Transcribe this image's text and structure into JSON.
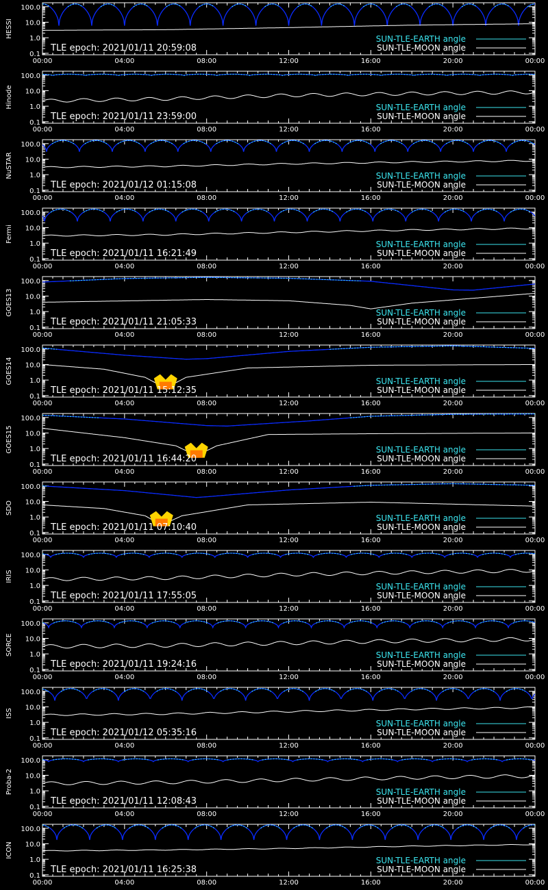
{
  "chart_data": {
    "type": "line",
    "x_tick_labels": [
      "00:00",
      "04:00",
      "08:00",
      "12:00",
      "16:00",
      "20:00",
      "00:00"
    ],
    "y_tick_labels": [
      "100.0",
      "10.0",
      "1.0",
      "0.1"
    ],
    "y_scale": "log",
    "xlim_hours": [
      0,
      24
    ],
    "ylim": [
      0.08,
      180
    ],
    "legend": {
      "placement": "bottom-right",
      "earth_label": "SUN-TLE-EARTH angle",
      "moon_label": "SUN-TLE-MOON angle"
    },
    "colors": {
      "earth_line": "#0a2bff",
      "earth_highlight": "#3ce6f0",
      "moon_line": "#ffffff",
      "marker_outer": "#ffd400",
      "marker_inner": "#ff7a00",
      "axes": "#ffffff",
      "background": "#000000"
    },
    "panels": [
      {
        "name": "HESSI",
        "epoch": "TLE epoch: 2021/01/11 20:59:08",
        "earth": {
          "kind": "arches",
          "period_hours": 1.6,
          "phase_hours": 0.8,
          "peak": 150,
          "dip": 6
        },
        "moon": [
          [
            0,
            3
          ],
          [
            6,
            3.3
          ],
          [
            12,
            4.5
          ],
          [
            18,
            6.5
          ],
          [
            24,
            8
          ]
        ]
      },
      {
        "name": "Hinode",
        "epoch": "TLE epoch: 2021/01/11 23:59:00",
        "earth": {
          "kind": "arches",
          "period_hours": 1.6,
          "phase_hours": 0.5,
          "peak": 115,
          "dip": 95
        },
        "moon": [
          [
            0,
            2.2
          ],
          [
            6,
            3
          ],
          [
            12,
            5
          ],
          [
            18,
            6.5
          ],
          [
            24,
            8
          ]
        ],
        "moon_wiggle": {
          "period_hours": 1.6,
          "factor": 1.6
        }
      },
      {
        "name": "NuSTAR",
        "epoch": "TLE epoch: 2021/01/12 01:15:08",
        "earth": {
          "kind": "arches",
          "period_hours": 1.6,
          "phase_hours": 0.2,
          "peak": 160,
          "dip": 30
        },
        "moon": [
          [
            0,
            3
          ],
          [
            6,
            3.5
          ],
          [
            12,
            5
          ],
          [
            18,
            6.5
          ],
          [
            24,
            8
          ]
        ],
        "moon_wiggle": {
          "period_hours": 1.6,
          "factor": 1.2
        }
      },
      {
        "name": "Fermi",
        "epoch": "TLE epoch: 2021/01/11 16:21:49",
        "earth": {
          "kind": "arches",
          "period_hours": 1.6,
          "phase_hours": 0.1,
          "peak": 155,
          "dip": 25
        },
        "moon": [
          [
            0,
            3
          ],
          [
            6,
            3.5
          ],
          [
            12,
            5
          ],
          [
            18,
            7
          ],
          [
            24,
            9
          ]
        ],
        "moon_wiggle": {
          "period_hours": 1.6,
          "factor": 1.2
        }
      },
      {
        "name": "GOES13",
        "epoch": "TLE epoch: 2021/01/11 21:05:33",
        "earth": {
          "kind": "smooth",
          "points": [
            [
              0,
              80
            ],
            [
              4,
              135
            ],
            [
              8,
              160
            ],
            [
              12,
              140
            ],
            [
              16,
              90
            ],
            [
              20,
              25
            ],
            [
              21,
              24
            ],
            [
              24,
              60
            ]
          ]
        },
        "moon": [
          [
            0,
            4
          ],
          [
            8,
            6
          ],
          [
            12,
            5
          ],
          [
            15,
            2.5
          ],
          [
            16,
            1.5
          ],
          [
            18,
            3.5
          ],
          [
            24,
            15
          ]
        ]
      },
      {
        "name": "GOES14",
        "epoch": "TLE epoch: 2021/01/11 15:12:35",
        "earth": {
          "kind": "smooth",
          "points": [
            [
              0,
              115
            ],
            [
              4,
              40
            ],
            [
              7,
              22
            ],
            [
              8,
              24
            ],
            [
              12,
              70
            ],
            [
              16,
              130
            ],
            [
              20,
              160
            ],
            [
              24,
              110
            ]
          ]
        },
        "moon": [
          [
            0,
            10
          ],
          [
            3,
            5
          ],
          [
            5,
            1.5
          ],
          [
            6,
            0.3
          ],
          [
            7,
            1.5
          ],
          [
            10,
            6
          ],
          [
            16,
            9
          ],
          [
            24,
            10
          ]
        ],
        "marker": [
          6,
          0.7
        ]
      },
      {
        "name": "GOES15",
        "epoch": "TLE epoch: 2021/01/11 16:44:20",
        "earth": {
          "kind": "smooth",
          "points": [
            [
              0,
              140
            ],
            [
              4,
              80
            ],
            [
              8,
              30
            ],
            [
              9,
              28
            ],
            [
              13,
              60
            ],
            [
              16,
              120
            ],
            [
              20,
              160
            ],
            [
              24,
              170
            ]
          ]
        },
        "moon": [
          [
            0,
            20
          ],
          [
            4,
            5
          ],
          [
            6.5,
            1.5
          ],
          [
            7.5,
            0.35
          ],
          [
            8.5,
            1.5
          ],
          [
            11,
            8
          ],
          [
            16,
            9
          ],
          [
            24,
            10
          ]
        ],
        "marker": [
          7.5,
          0.7
        ]
      },
      {
        "name": "SDO",
        "epoch": "TLE epoch: 2021/01/11 07:10:40",
        "earth": {
          "kind": "smooth",
          "points": [
            [
              0,
              100
            ],
            [
              4,
              50
            ],
            [
              7.5,
              18
            ],
            [
              8,
              20
            ],
            [
              12,
              55
            ],
            [
              16,
              110
            ],
            [
              20,
              140
            ],
            [
              24,
              110
            ]
          ]
        },
        "moon": [
          [
            0,
            6
          ],
          [
            3,
            3.5
          ],
          [
            5,
            1.2
          ],
          [
            5.8,
            0.3
          ],
          [
            6.8,
            1.2
          ],
          [
            10,
            6
          ],
          [
            16,
            9
          ],
          [
            24,
            5
          ]
        ],
        "marker": [
          5.8,
          0.7
        ]
      },
      {
        "name": "IRIS",
        "epoch": "TLE epoch: 2021/01/11 17:55:05",
        "earth": {
          "kind": "arches",
          "period_hours": 1.6,
          "phase_hours": 0.4,
          "peak": 120,
          "dip": 65
        },
        "moon": [
          [
            0,
            2.5
          ],
          [
            6,
            3
          ],
          [
            12,
            5
          ],
          [
            18,
            7
          ],
          [
            24,
            9
          ]
        ],
        "moon_wiggle": {
          "period_hours": 1.6,
          "factor": 1.6
        }
      },
      {
        "name": "SORCE",
        "epoch": "TLE epoch: 2021/01/11 19:24:16",
        "earth": {
          "kind": "arches",
          "period_hours": 1.6,
          "phase_hours": 0.3,
          "peak": 135,
          "dip": 50
        },
        "moon": [
          [
            0,
            3
          ],
          [
            6,
            3.5
          ],
          [
            12,
            5
          ],
          [
            18,
            7
          ],
          [
            24,
            9
          ]
        ],
        "moon_wiggle": {
          "period_hours": 1.6,
          "factor": 1.7
        }
      },
      {
        "name": "ISS",
        "epoch": "TLE epoch: 2021/01/12 05:35:16",
        "earth": {
          "kind": "arches",
          "period_hours": 1.55,
          "phase_hours": 0.6,
          "peak": 150,
          "dip": 25
        },
        "moon": [
          [
            0,
            3
          ],
          [
            6,
            3.5
          ],
          [
            12,
            5
          ],
          [
            18,
            7
          ],
          [
            24,
            9
          ]
        ],
        "moon_wiggle": {
          "period_hours": 1.55,
          "factor": 1.25
        }
      },
      {
        "name": "Proba-2",
        "epoch": "TLE epoch: 2021/01/11 12:08:43",
        "earth": {
          "kind": "arches",
          "period_hours": 1.7,
          "phase_hours": 0.3,
          "peak": 115,
          "dip": 75
        },
        "moon": [
          [
            0,
            3
          ],
          [
            6,
            3.5
          ],
          [
            12,
            5
          ],
          [
            18,
            7
          ],
          [
            24,
            9
          ]
        ],
        "moon_wiggle": {
          "period_hours": 1.7,
          "factor": 1.6
        }
      },
      {
        "name": "ICON",
        "epoch": "TLE epoch: 2021/01/11 16:25:38",
        "earth": {
          "kind": "arches",
          "period_hours": 1.6,
          "phase_hours": 0.7,
          "peak": 165,
          "dip": 18
        },
        "moon": [
          [
            0,
            3.5
          ],
          [
            6,
            4
          ],
          [
            12,
            5
          ],
          [
            18,
            7
          ],
          [
            24,
            9
          ]
        ],
        "moon_wiggle": {
          "period_hours": 1.6,
          "factor": 1.1
        }
      }
    ]
  }
}
